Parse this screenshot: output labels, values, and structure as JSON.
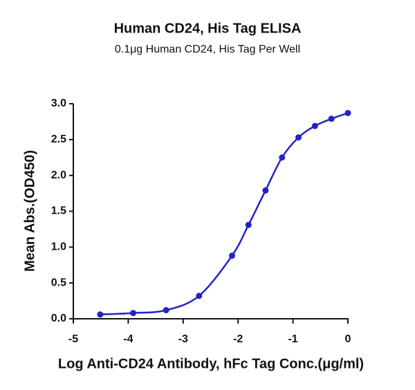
{
  "chart_data": {
    "type": "scatter",
    "title": "Human CD24, His Tag ELISA",
    "subtitle": "0.1μg Human CD24, His Tag Per Well",
    "x_label": "Log Anti-CD24 Antibody, hFc Tag Conc.(μg/ml)",
    "y_label": "Mean Abs.(OD450)",
    "x": [
      -4.51,
      -3.91,
      -3.31,
      -2.71,
      -2.11,
      -1.81,
      -1.5,
      -1.2,
      -0.9,
      -0.6,
      -0.3,
      0
    ],
    "values": [
      0.06,
      0.08,
      0.12,
      0.32,
      0.88,
      1.31,
      1.79,
      2.25,
      2.53,
      2.69,
      2.79,
      2.87
    ],
    "color": "#2323c4",
    "xlim": [
      -5,
      0
    ],
    "xticks": [
      -5,
      -4,
      -3,
      -2,
      -1,
      0
    ],
    "ylim": [
      0,
      3
    ],
    "yticks": [
      {
        "value": 0,
        "label": "0.0"
      },
      0.5,
      {
        "value": 1,
        "label": "1.0"
      },
      1.5,
      {
        "value": 2,
        "label": "2.0"
      },
      2.5,
      {
        "value": 3,
        "label": "3.0"
      }
    ]
  }
}
